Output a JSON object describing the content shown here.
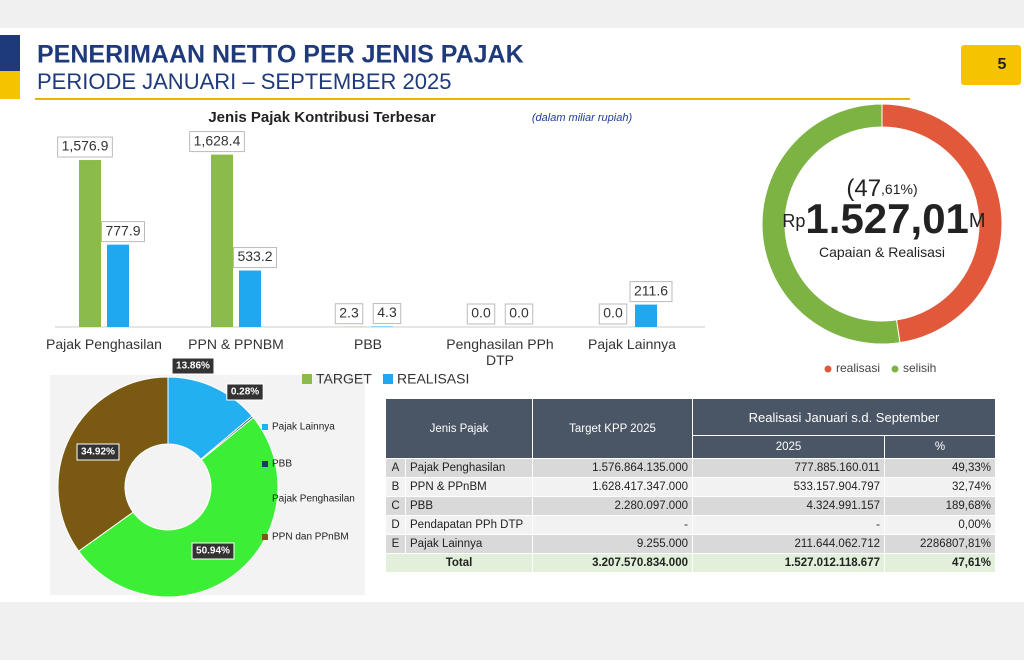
{
  "header": {
    "title": "PENERIMAAN NETTO PER JENIS PAJAK",
    "subtitle": "PERIODE JANUARI – SEPTEMBER 2025",
    "page": "5"
  },
  "chart_data": [
    {
      "type": "bar",
      "title": "Jenis Pajak Kontribusi Terbesar",
      "subtitle": "(dalam miliar rupiah)",
      "categories": [
        "Pajak Penghasilan",
        "PPN & PPNBM",
        "PBB",
        "Penghasilan PPh DTP",
        "Pajak Lainnya"
      ],
      "series": [
        {
          "name": "TARGET",
          "color": "#8bbb4b",
          "values": [
            1576.9,
            1628.4,
            2.3,
            0,
            0
          ],
          "value_labels": [
            "1,576.9",
            "1,628.4",
            "2.3",
            "0.0",
            "0.0"
          ]
        },
        {
          "name": "REALISASI",
          "color": "#1fa8f0",
          "values": [
            777.9,
            533.2,
            4.3,
            0,
            211.6
          ],
          "value_labels": [
            "777.9",
            "533.2",
            "4.3",
            "0.0",
            "211.6"
          ]
        }
      ],
      "ylim": [
        0,
        1700
      ]
    },
    {
      "type": "donut",
      "categories": [
        "realisasi",
        "selisih"
      ],
      "values": [
        47.61,
        52.39
      ],
      "colors": [
        "#e1583a",
        "#7db343"
      ],
      "center_labels": [
        "(47",
        ",61%)",
        "Rp",
        "1.527,01",
        "M",
        "Capaian & Realisasi"
      ]
    },
    {
      "type": "donut",
      "categories": [
        "Pajak Lainnya",
        "PBB",
        "Pajak Penghasilan",
        "PPN dan PPnBM"
      ],
      "values": [
        13.86,
        0.28,
        50.94,
        34.92
      ],
      "value_labels": [
        "13.86%",
        "0.28%",
        "50.94%",
        "34.92%"
      ],
      "colors": [
        "#22b0f0",
        "#1f3864",
        "#3cef36",
        "#7a5a12"
      ]
    }
  ],
  "table": {
    "header": [
      "Jenis Pajak",
      "Target KPP 2025",
      "Realisasi Januari s.d. September",
      "2025",
      "%"
    ],
    "rows": [
      [
        "A",
        "Pajak Penghasilan",
        "1.576.864.135.000",
        "777.885.160.011",
        "49,33%"
      ],
      [
        "B",
        "PPN & PPnBM",
        "1.628.417.347.000",
        "533.157.904.797",
        "32,74%"
      ],
      [
        "C",
        "PBB",
        "2.280.097.000",
        "4.324.991.157",
        "189,68%"
      ],
      [
        "D",
        "Pendapatan PPh DTP",
        "-",
        "-",
        "0,00%"
      ],
      [
        "E",
        "Pajak Lainnya",
        "9.255.000",
        "211.644.062.712",
        "2286807,81%"
      ]
    ],
    "total": [
      "Total",
      "3.207.570.834.000",
      "1.527.012.118.677",
      "47,61%"
    ]
  }
}
